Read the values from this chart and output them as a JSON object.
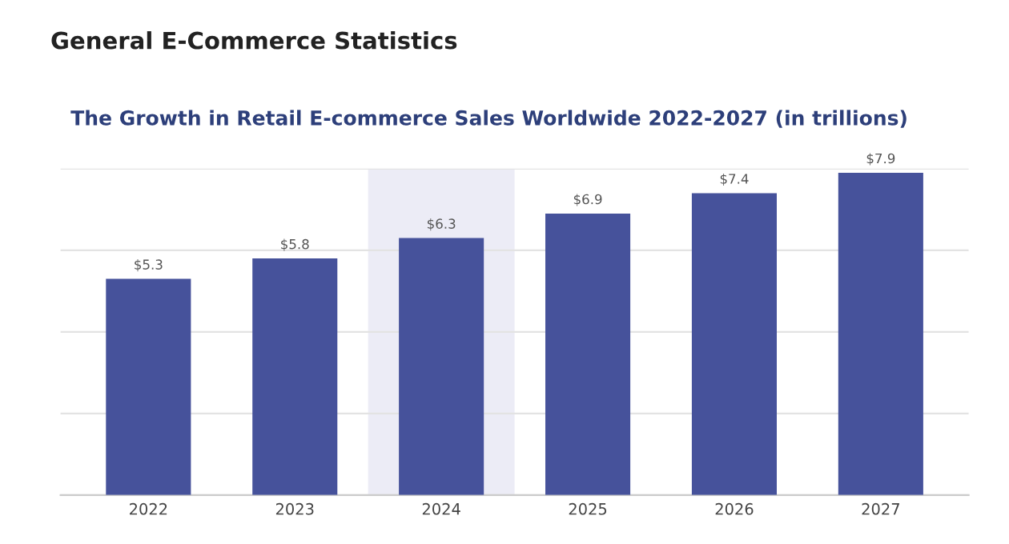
{
  "chart_data": {
    "type": "bar",
    "title": "General E-Commerce Statistics",
    "subtitle": "The Growth in Retail E-commerce Sales Worldwide 2022-2027 (in trillions)",
    "categories": [
      "2022",
      "2023",
      "2024",
      "2025",
      "2026",
      "2027"
    ],
    "values": [
      5.3,
      5.8,
      6.3,
      6.9,
      7.4,
      7.9
    ],
    "color": "#46529b",
    "value_labels": [
      "$5.3",
      "$5.8",
      "$6.3",
      "$6.9",
      "$7.4",
      "$7.9"
    ],
    "ylim": [
      0,
      8
    ],
    "yticks": [
      {
        "value": 0,
        "label": null
      },
      {
        "value": 2,
        "label": null
      },
      {
        "value": 4,
        "label": null
      },
      {
        "value": 6,
        "label": null
      },
      {
        "value": 8,
        "label": null
      }
    ],
    "tick_labels": "x",
    "grid": "y",
    "bands": [
      {
        "axis": "x",
        "from": "2024",
        "to": "2024",
        "color": "#ececf6"
      }
    ]
  }
}
